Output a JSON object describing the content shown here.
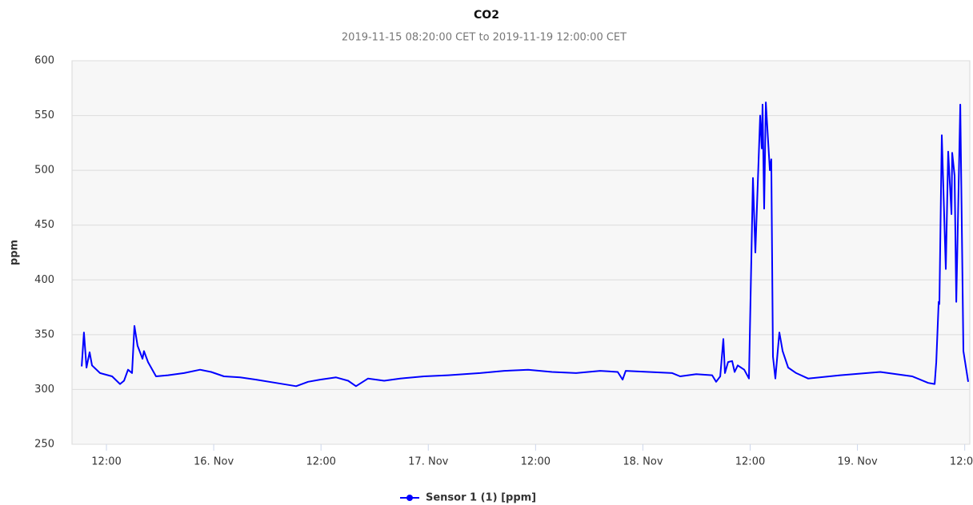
{
  "chart_data": {
    "type": "line",
    "title": "CO2",
    "subtitle": "2019-11-15 08:20:00 CET to 2019-11-19 12:00:00 CET",
    "ylabel": "ppm",
    "x": [
      "2019-11-15T09:14",
      "2019-11-15T09:29",
      "2019-11-15T09:46",
      "2019-11-15T10:07",
      "2019-11-15T10:23",
      "2019-11-15T11:17",
      "2019-11-15T12:38",
      "2019-11-15T13:31",
      "2019-11-15T13:58",
      "2019-11-15T14:25",
      "2019-11-15T14:52",
      "2019-11-15T15:08",
      "2019-11-15T15:29",
      "2019-11-15T16:02",
      "2019-11-15T16:12",
      "2019-11-15T16:39",
      "2019-11-15T17:33",
      "2019-11-15T18:53",
      "2019-11-15T20:41",
      "2019-11-15T22:28",
      "2019-11-15T23:43",
      "2019-11-16T01:09",
      "2019-11-16T02:57",
      "2019-11-16T04:44",
      "2019-11-16T06:58",
      "2019-11-16T09:13",
      "2019-11-16T10:33",
      "2019-11-16T11:54",
      "2019-11-16T13:41",
      "2019-11-16T15:02",
      "2019-11-16T15:55",
      "2019-11-16T17:16",
      "2019-11-16T19:04",
      "2019-11-16T20:51",
      "2019-11-16T23:32",
      "2019-11-17T02:13",
      "2019-11-17T05:48",
      "2019-11-17T08:29",
      "2019-11-17T11:10",
      "2019-11-17T13:51",
      "2019-11-17T16:32",
      "2019-11-17T19:13",
      "2019-11-17T21:11",
      "2019-11-17T21:44",
      "2019-11-17T22:05",
      "2019-11-18T03:17",
      "2019-11-18T04:10",
      "2019-11-18T05:58",
      "2019-11-18T07:45",
      "2019-11-18T08:12",
      "2019-11-18T08:39",
      "2019-11-18T09:00",
      "2019-11-18T09:11",
      "2019-11-18T09:32",
      "2019-11-18T09:59",
      "2019-11-18T10:16",
      "2019-11-18T10:37",
      "2019-11-18T11:20",
      "2019-11-18T11:52",
      "2019-11-18T12:19",
      "2019-11-18T12:35",
      "2019-11-18T13:07",
      "2019-11-18T13:18",
      "2019-11-18T13:23",
      "2019-11-18T13:34",
      "2019-11-18T13:45",
      "2019-11-18T14:12",
      "2019-11-18T14:22",
      "2019-11-18T14:33",
      "2019-11-18T14:49",
      "2019-11-18T15:16",
      "2019-11-18T15:38",
      "2019-11-18T16:15",
      "2019-11-18T17:09",
      "2019-11-18T18:29",
      "2019-11-18T22:04",
      "2019-11-19T02:33",
      "2019-11-19T06:08",
      "2019-11-19T07:55",
      "2019-11-19T08:38",
      "2019-11-19T08:49",
      "2019-11-19T09:05",
      "2019-11-19T09:10",
      "2019-11-19T09:26",
      "2019-11-19T09:53",
      "2019-11-19T10:09",
      "2019-11-19T10:31",
      "2019-11-19T10:36",
      "2019-11-19T10:52",
      "2019-11-19T11:03",
      "2019-11-19T11:30",
      "2019-11-19T11:51",
      "2019-11-19T12:23"
    ],
    "series": [
      {
        "name": "Sensor 1 (1) [ppm]",
        "color": "#0000ff",
        "values": [
          321,
          352,
          320,
          334,
          322,
          315,
          312,
          305,
          308,
          318,
          315,
          358,
          340,
          328,
          335,
          325,
          312,
          313,
          315,
          318,
          316,
          312,
          311,
          309,
          306,
          303,
          307,
          309,
          311,
          308,
          303,
          310,
          308,
          310,
          312,
          313,
          315,
          317,
          318,
          316,
          315,
          317,
          316,
          309,
          317,
          315,
          312,
          314,
          313,
          307,
          312,
          346,
          315,
          325,
          326,
          316,
          322,
          318,
          310,
          493,
          425,
          550,
          520,
          560,
          465,
          562,
          500,
          510,
          330,
          310,
          352,
          335,
          320,
          315,
          310,
          313,
          316,
          312,
          306,
          305,
          325,
          380,
          378,
          532,
          410,
          517,
          460,
          516,
          495,
          380,
          560,
          335,
          307
        ]
      }
    ],
    "xlim": [
      "2019-11-15T08:09",
      "2019-11-19T12:34"
    ],
    "xticks": [
      {
        "value": "2019-11-15T12:00",
        "label": "12:00"
      },
      {
        "value": "2019-11-16T00:00",
        "label": "16. Nov"
      },
      {
        "value": "2019-11-16T12:00",
        "label": "12:00"
      },
      {
        "value": "2019-11-17T00:00",
        "label": "17. Nov"
      },
      {
        "value": "2019-11-17T12:00",
        "label": "12:00"
      },
      {
        "value": "2019-11-18T00:00",
        "label": "18. Nov"
      },
      {
        "value": "2019-11-18T12:00",
        "label": "12:00"
      },
      {
        "value": "2019-11-19T00:00",
        "label": "19. Nov"
      },
      {
        "value": "2019-11-19T12:00",
        "label": "12:00"
      }
    ],
    "ylim": [
      250,
      600
    ],
    "yticks": [
      250,
      300,
      350,
      400,
      450,
      500,
      550,
      600
    ],
    "grid": true
  }
}
